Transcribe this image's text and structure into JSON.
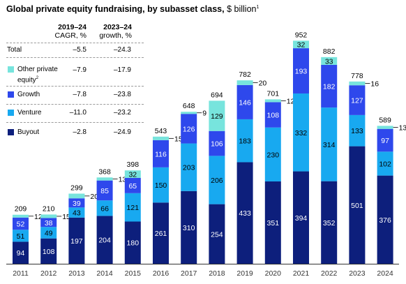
{
  "title": {
    "bold": "Global private equity fundraising, by subasset class,",
    "unit": "$ billion",
    "note": "1"
  },
  "table": {
    "col1_header_line1": "2019–24",
    "col1_header_line2": "CAGR, %",
    "col2_header_line1": "2023–24",
    "col2_header_line2": "growth, %",
    "rows": [
      {
        "label": "Total",
        "cagr": "–5.5",
        "growth": "–24.3",
        "swatch": null
      },
      {
        "label": "Other private equity",
        "label_line1": "Other private",
        "label_line2": "equity",
        "note": "2",
        "cagr": "–7.9",
        "growth": "–17.9",
        "swatch": "#77e4dd"
      },
      {
        "label": "Growth",
        "cagr": "–7.8",
        "growth": "–23.8",
        "swatch": "#2e48ec"
      },
      {
        "label": "Venture",
        "cagr": "–11.0",
        "growth": "–23.2",
        "swatch": "#18a9f0"
      },
      {
        "label": "Buyout",
        "cagr": "–2.8",
        "growth": "–24.9",
        "swatch": "#0d1f7c"
      }
    ]
  },
  "colors": {
    "buyout": "#0d1f7c",
    "venture": "#18a9f0",
    "growth": "#2e48ec",
    "other": "#77e4dd"
  },
  "chart_data": {
    "type": "bar",
    "stacked": true,
    "categories": [
      "2011",
      "2012",
      "2013",
      "2014",
      "2015",
      "2016",
      "2017",
      "2018",
      "2019",
      "2020",
      "2021",
      "2022",
      "2023",
      "2024"
    ],
    "series": [
      {
        "name": "Buyout",
        "values": [
          94,
          108,
          197,
          204,
          180,
          261,
          310,
          254,
          433,
          351,
          394,
          352,
          501,
          376
        ]
      },
      {
        "name": "Venture",
        "values": [
          51,
          49,
          43,
          66,
          121,
          150,
          203,
          206,
          183,
          230,
          332,
          314,
          133,
          102
        ]
      },
      {
        "name": "Growth",
        "values": [
          52,
          38,
          39,
          85,
          65,
          116,
          126,
          106,
          146,
          108,
          193,
          182,
          127,
          97
        ]
      },
      {
        "name": "Other private equity",
        "values": [
          12,
          15,
          20,
          13,
          32,
          15,
          9,
          129,
          20,
          12,
          32,
          33,
          16,
          13
        ]
      }
    ],
    "totals": [
      209,
      210,
      299,
      368,
      398,
      543,
      648,
      694,
      782,
      701,
      952,
      882,
      778,
      589
    ],
    "ylim": [
      0,
      952
    ]
  }
}
